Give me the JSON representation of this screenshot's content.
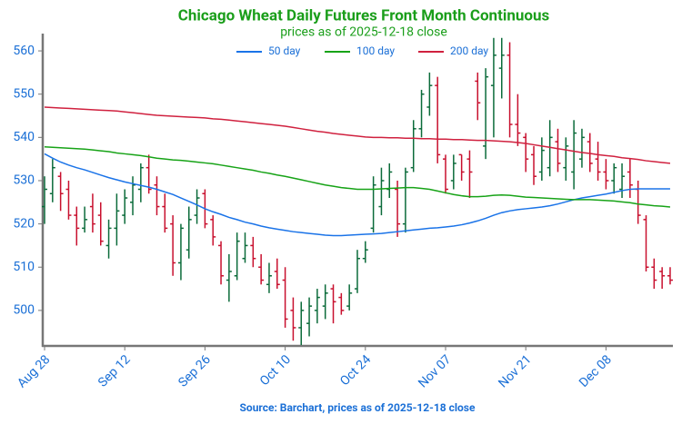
{
  "chart_data": {
    "type": "ohlc",
    "title": "Chicago Wheat Daily Futures Front Month Continuous",
    "subtitle": "prices as of 2025-12-18 close",
    "source": "Source: Barchart, prices as of 2025-12-18 close",
    "categories": [
      "Aug 28",
      null,
      null,
      null,
      null,
      null,
      null,
      null,
      null,
      null,
      "Sep 12",
      null,
      null,
      null,
      null,
      null,
      null,
      null,
      null,
      null,
      "Sep 26",
      null,
      null,
      null,
      null,
      null,
      null,
      null,
      null,
      null,
      "Oct 10",
      null,
      null,
      null,
      null,
      null,
      null,
      null,
      null,
      null,
      "Oct 24",
      null,
      null,
      null,
      null,
      null,
      null,
      null,
      null,
      null,
      "Nov 07",
      null,
      null,
      null,
      null,
      null,
      null,
      null,
      null,
      null,
      "Nov 21",
      null,
      null,
      null,
      null,
      null,
      null,
      null,
      null,
      null,
      "Dec 08",
      null,
      null,
      null,
      null,
      null,
      null,
      null,
      null
    ],
    "ohlc": {
      "up_color": "#0b6b3a",
      "down_color": "#c8102e",
      "open": [
        524,
        527,
        531,
        528,
        522,
        519,
        524,
        522,
        515,
        519,
        522,
        525,
        528,
        533,
        529,
        524,
        520,
        511,
        514,
        522,
        527,
        521,
        515,
        507,
        508,
        512,
        515,
        510,
        506,
        509,
        507,
        500,
        496,
        497,
        500,
        501,
        505,
        503,
        501,
        505,
        512,
        519,
        524,
        528,
        528,
        520,
        533,
        542,
        547,
        552,
        535,
        530,
        536,
        535,
        553,
        538,
        552,
        556,
        559,
        543,
        540,
        536,
        532,
        533,
        539,
        533,
        532,
        535,
        539,
        535,
        532,
        530,
        528,
        532,
        528,
        521,
        510,
        509,
        508
      ],
      "high": [
        531,
        535,
        532,
        530,
        524,
        524,
        527,
        525,
        521,
        527,
        528,
        531,
        534,
        536,
        531,
        527,
        522,
        520,
        524,
        528,
        528,
        522,
        516,
        513,
        518,
        518,
        517,
        513,
        511,
        512,
        510,
        503,
        502,
        503,
        505,
        506,
        506,
        504,
        506,
        514,
        516,
        531,
        533,
        534,
        530,
        533,
        544,
        551,
        555,
        554,
        536,
        536,
        536,
        537,
        555,
        556,
        563,
        563,
        562,
        550,
        541,
        538,
        540,
        544,
        542,
        540,
        544,
        542,
        541,
        539,
        535,
        534,
        534,
        535,
        530,
        522,
        512,
        510,
        510
      ],
      "low": [
        520,
        525,
        523,
        521,
        515,
        518,
        518,
        515,
        512,
        515,
        520,
        522,
        525,
        527,
        522,
        518,
        508,
        507,
        512,
        520,
        519,
        515,
        506,
        502,
        507,
        511,
        510,
        506,
        504,
        505,
        496,
        493,
        492,
        494,
        497,
        498,
        497,
        499,
        500,
        504,
        511,
        518,
        522,
        526,
        517,
        518,
        532,
        540,
        545,
        534,
        527,
        528,
        530,
        526,
        544,
        535,
        540,
        549,
        540,
        538,
        532,
        529,
        530,
        531,
        532,
        530,
        528,
        533,
        532,
        530,
        528,
        527,
        526,
        526,
        520,
        509,
        505,
        505,
        506
      ],
      "close": [
        528,
        533,
        527,
        522,
        519,
        521,
        520,
        516,
        519,
        523,
        526,
        529,
        533,
        528,
        524,
        519,
        511,
        519,
        521,
        526,
        520,
        517,
        508,
        509,
        516,
        515,
        512,
        507,
        508,
        506,
        498,
        496,
        500,
        501,
        503,
        504,
        502,
        500,
        504,
        512,
        514,
        529,
        530,
        532,
        520,
        532,
        542,
        550,
        552,
        536,
        528,
        534,
        532,
        532,
        548,
        554,
        559,
        559,
        543,
        541,
        535,
        531,
        537,
        540,
        534,
        538,
        541,
        540,
        534,
        532,
        530,
        533,
        531,
        529,
        522,
        510,
        507,
        508,
        507
      ]
    },
    "series": [
      {
        "name": "50 day",
        "color": "#1a73e8",
        "values": [
          536.2,
          535.2,
          534.3,
          533.6,
          533,
          532.5,
          531.9,
          531.3,
          530.7,
          530.2,
          529.7,
          529.3,
          528.9,
          528.5,
          528,
          527.4,
          526.8,
          526,
          525.2,
          524.4,
          523.5,
          522.8,
          522.2,
          521.5,
          521,
          520.4,
          520,
          519.5,
          519.1,
          518.8,
          518.5,
          518.2,
          518,
          517.8,
          517.6,
          517.4,
          517.3,
          517.3,
          517.4,
          517.5,
          517.6,
          517.7,
          517.8,
          518,
          518.2,
          518.4,
          518.6,
          518.8,
          519,
          519.1,
          519.3,
          519.5,
          519.8,
          520.2,
          520.7,
          521.3,
          522,
          522.6,
          523,
          523.3,
          523.5,
          523.7,
          523.9,
          524.2,
          524.6,
          525.1,
          525.6,
          526,
          526.3,
          526.6,
          526.9,
          527.3,
          527.7,
          528,
          528.1,
          528.1,
          528.1,
          528.1,
          528.1
        ]
      },
      {
        "name": "100 day",
        "color": "#17a317",
        "values": [
          537.8,
          537.7,
          537.6,
          537.5,
          537.4,
          537.3,
          537.1,
          536.9,
          536.7,
          536.4,
          536.2,
          536,
          535.8,
          535.5,
          535.2,
          535,
          534.8,
          534.7,
          534.5,
          534.3,
          534.1,
          533.9,
          533.6,
          533.3,
          533,
          532.7,
          532.4,
          532,
          531.7,
          531.3,
          531,
          530.6,
          530.2,
          529.8,
          529.4,
          529,
          528.7,
          528.4,
          528.2,
          528,
          528,
          528,
          528.1,
          528.2,
          528.3,
          528.4,
          528.4,
          528.2,
          528,
          527.6,
          527.2,
          526.8,
          526.5,
          526.3,
          526.3,
          526.4,
          526.6,
          526.7,
          526.6,
          526.4,
          526.2,
          526.1,
          526,
          525.9,
          525.8,
          525.7,
          525.6,
          525.6,
          525.6,
          525.5,
          525.4,
          525.3,
          525.1,
          524.9,
          524.6,
          524.4,
          524.2,
          524.1,
          523.9
        ]
      },
      {
        "name": "200 day",
        "color": "#d0213f",
        "values": [
          547,
          546.9,
          546.8,
          546.7,
          546.6,
          546.5,
          546.4,
          546.3,
          546.2,
          546.1,
          545.9,
          545.7,
          545.5,
          545.3,
          545.1,
          545,
          544.9,
          544.8,
          544.7,
          544.6,
          544.5,
          544.3,
          544.2,
          544,
          543.8,
          543.6,
          543.4,
          543.2,
          543,
          542.8,
          542.6,
          542.3,
          542,
          541.7,
          541.4,
          541.2,
          540.9,
          540.7,
          540.5,
          540.3,
          540.1,
          540,
          540,
          539.9,
          539.9,
          539.8,
          539.8,
          539.7,
          539.7,
          539.6,
          539.6,
          539.5,
          539.5,
          539.4,
          539.3,
          539.3,
          539.2,
          539.1,
          539,
          538.8,
          538.6,
          538.3,
          538,
          537.7,
          537.4,
          537.1,
          536.8,
          536.5,
          536.3,
          536,
          535.8,
          535.6,
          535.3,
          535.1,
          534.9,
          534.6,
          534.4,
          534.2,
          534
        ]
      }
    ],
    "ylim": [
      492,
      564
    ],
    "yticks": [
      500,
      510,
      520,
      530,
      540,
      550,
      560
    ],
    "legend": "top",
    "grid": false
  }
}
